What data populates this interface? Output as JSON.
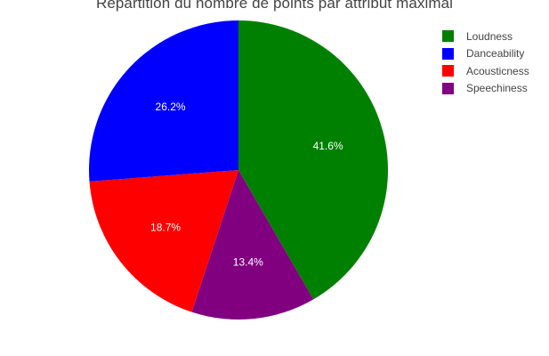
{
  "chart_data": {
    "type": "pie",
    "title": "Répartition du nombre de points par attribut maximal",
    "direction": "clockwise",
    "start_angle_deg": 90,
    "legend_position": "top-right",
    "slices": [
      {
        "label": "Loudness",
        "value": 41.6,
        "text": "41.6%",
        "color": "#008000"
      },
      {
        "label": "Speechiness",
        "value": 13.4,
        "text": "13.4%",
        "color": "#800080"
      },
      {
        "label": "Acousticness",
        "value": 18.7,
        "text": "18.7%",
        "color": "#ff0000"
      },
      {
        "label": "Danceability",
        "value": 26.2,
        "text": "26.2%",
        "color": "#0000ff"
      }
    ],
    "legend": [
      {
        "label": "Loudness",
        "color": "#008000"
      },
      {
        "label": "Danceability",
        "color": "#0000ff"
      },
      {
        "label": "Acousticness",
        "color": "#ff0000"
      },
      {
        "label": "Speechiness",
        "color": "#800080"
      }
    ]
  }
}
